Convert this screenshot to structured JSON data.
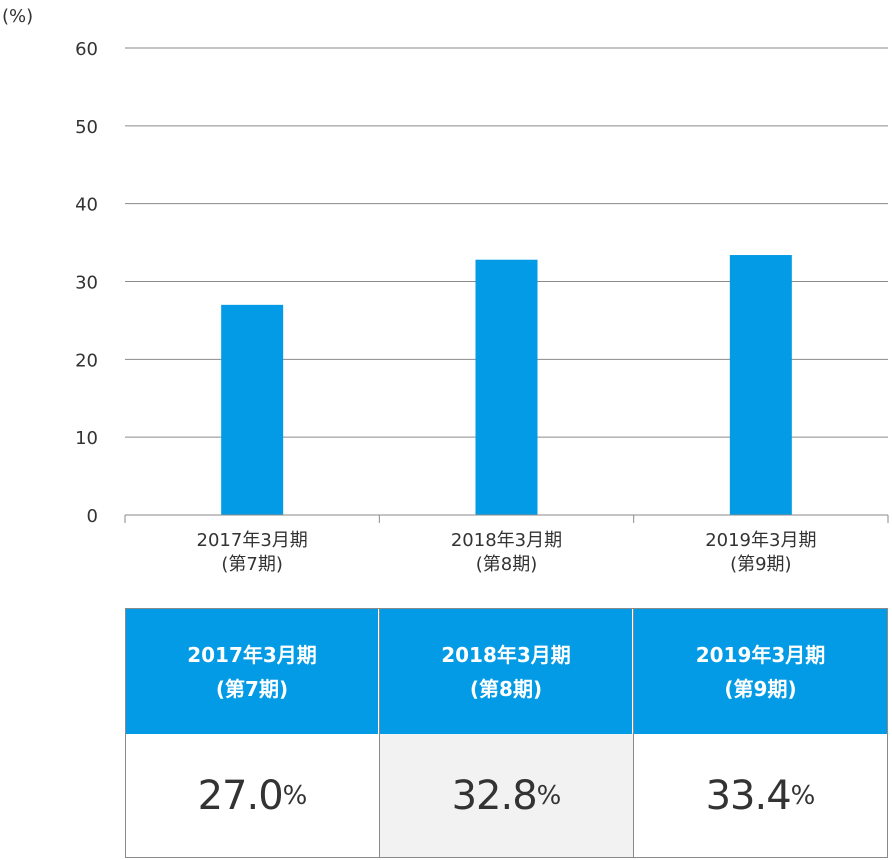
{
  "chart_data": {
    "type": "bar",
    "unit_label": "(%)",
    "categories": [
      [
        "2017年3月期",
        "(第7期)"
      ],
      [
        "2018年3月期",
        "(第8期)"
      ],
      [
        "2019年3月期",
        "(第9期)"
      ]
    ],
    "values": [
      27.0,
      32.8,
      33.4
    ],
    "ylim": [
      0,
      60
    ],
    "yticks": [
      "0",
      "10",
      "20",
      "30",
      "40",
      "50",
      "60"
    ],
    "grid": true,
    "bar_color": "#039be5"
  },
  "table": {
    "columns": [
      {
        "line1": "2017年3月期",
        "line2": "(第7期)",
        "value": "27.0",
        "unit": "%"
      },
      {
        "line1": "2018年3月期",
        "line2": "(第8期)",
        "value": "32.8",
        "unit": "%"
      },
      {
        "line1": "2019年3月期",
        "line2": "(第9期)",
        "value": "33.4",
        "unit": "%"
      }
    ]
  }
}
